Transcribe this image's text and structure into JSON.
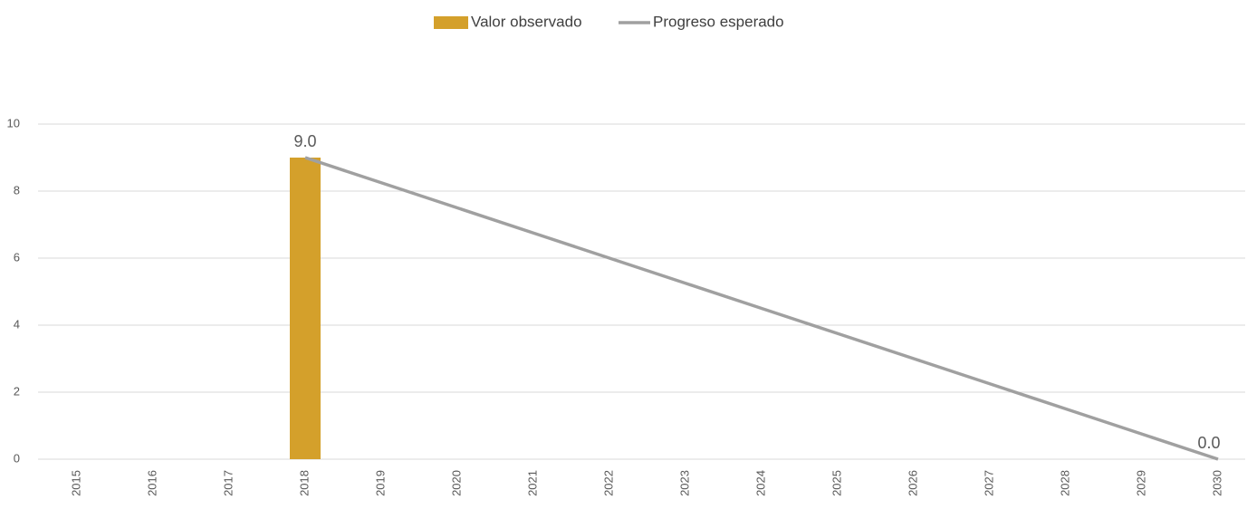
{
  "chart_data": {
    "type": "bar_line",
    "categories": [
      "2015",
      "2016",
      "2017",
      "2018",
      "2019",
      "2020",
      "2021",
      "2022",
      "2023",
      "2024",
      "2025",
      "2026",
      "2027",
      "2028",
      "2029",
      "2030"
    ],
    "series": [
      {
        "name": "Valor observado",
        "type": "bar",
        "color": "#d4a02b",
        "values": [
          null,
          null,
          null,
          9,
          null,
          null,
          null,
          null,
          null,
          null,
          null,
          null,
          null,
          null,
          null,
          null
        ],
        "value_labels": [
          null,
          null,
          null,
          "9.0",
          null,
          null,
          null,
          null,
          null,
          null,
          null,
          null,
          null,
          null,
          null,
          null
        ]
      },
      {
        "name": "Progreso esperado",
        "type": "line",
        "color": "#a0a0a0",
        "values": [
          null,
          null,
          null,
          9,
          8.25,
          7.5,
          6.75,
          6,
          5.25,
          4.5,
          3.75,
          3,
          2.25,
          1.5,
          0.75,
          0
        ],
        "value_labels": [
          null,
          null,
          null,
          null,
          null,
          null,
          null,
          null,
          null,
          null,
          null,
          null,
          null,
          null,
          null,
          "0.0"
        ]
      }
    ],
    "ylim": [
      0,
      10
    ],
    "yticks": [
      0,
      2,
      4,
      6,
      8,
      10
    ],
    "grid": true,
    "legend": "top"
  }
}
